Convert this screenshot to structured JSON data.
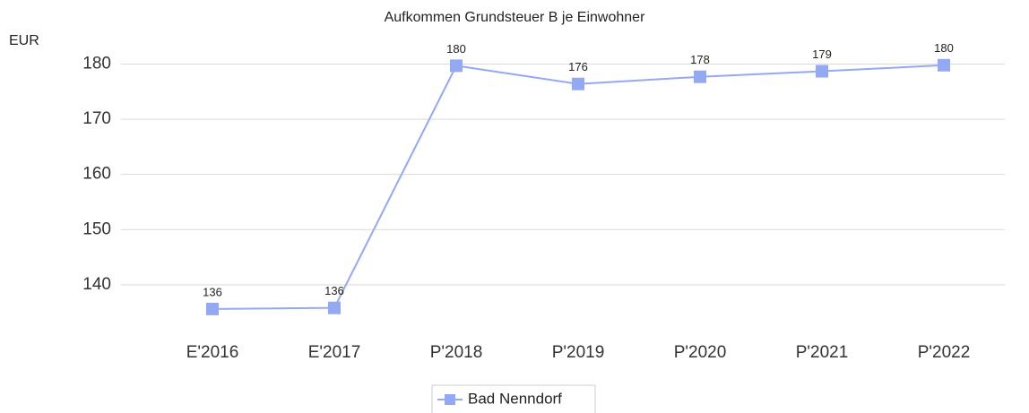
{
  "chart_data": {
    "type": "line",
    "title": "Aufkommen Grundsteuer B je Einwohner",
    "y_label": "EUR",
    "categories": [
      "E'2016",
      "E'2017",
      "P'2018",
      "P'2019",
      "P'2020",
      "P'2021",
      "P'2022"
    ],
    "series": [
      {
        "name": "Bad Nenndorf",
        "color": "#94a9f4",
        "values": [
          135.6,
          135.8,
          179.7,
          176.4,
          177.7,
          178.7,
          179.8
        ],
        "value_labels": [
          "136",
          "136",
          "180",
          "176",
          "178",
          "179",
          "180"
        ]
      }
    ],
    "ylim": [
      133.8,
      182.2
    ],
    "yticks": [
      140,
      150,
      160,
      170,
      180
    ],
    "grid": true
  }
}
